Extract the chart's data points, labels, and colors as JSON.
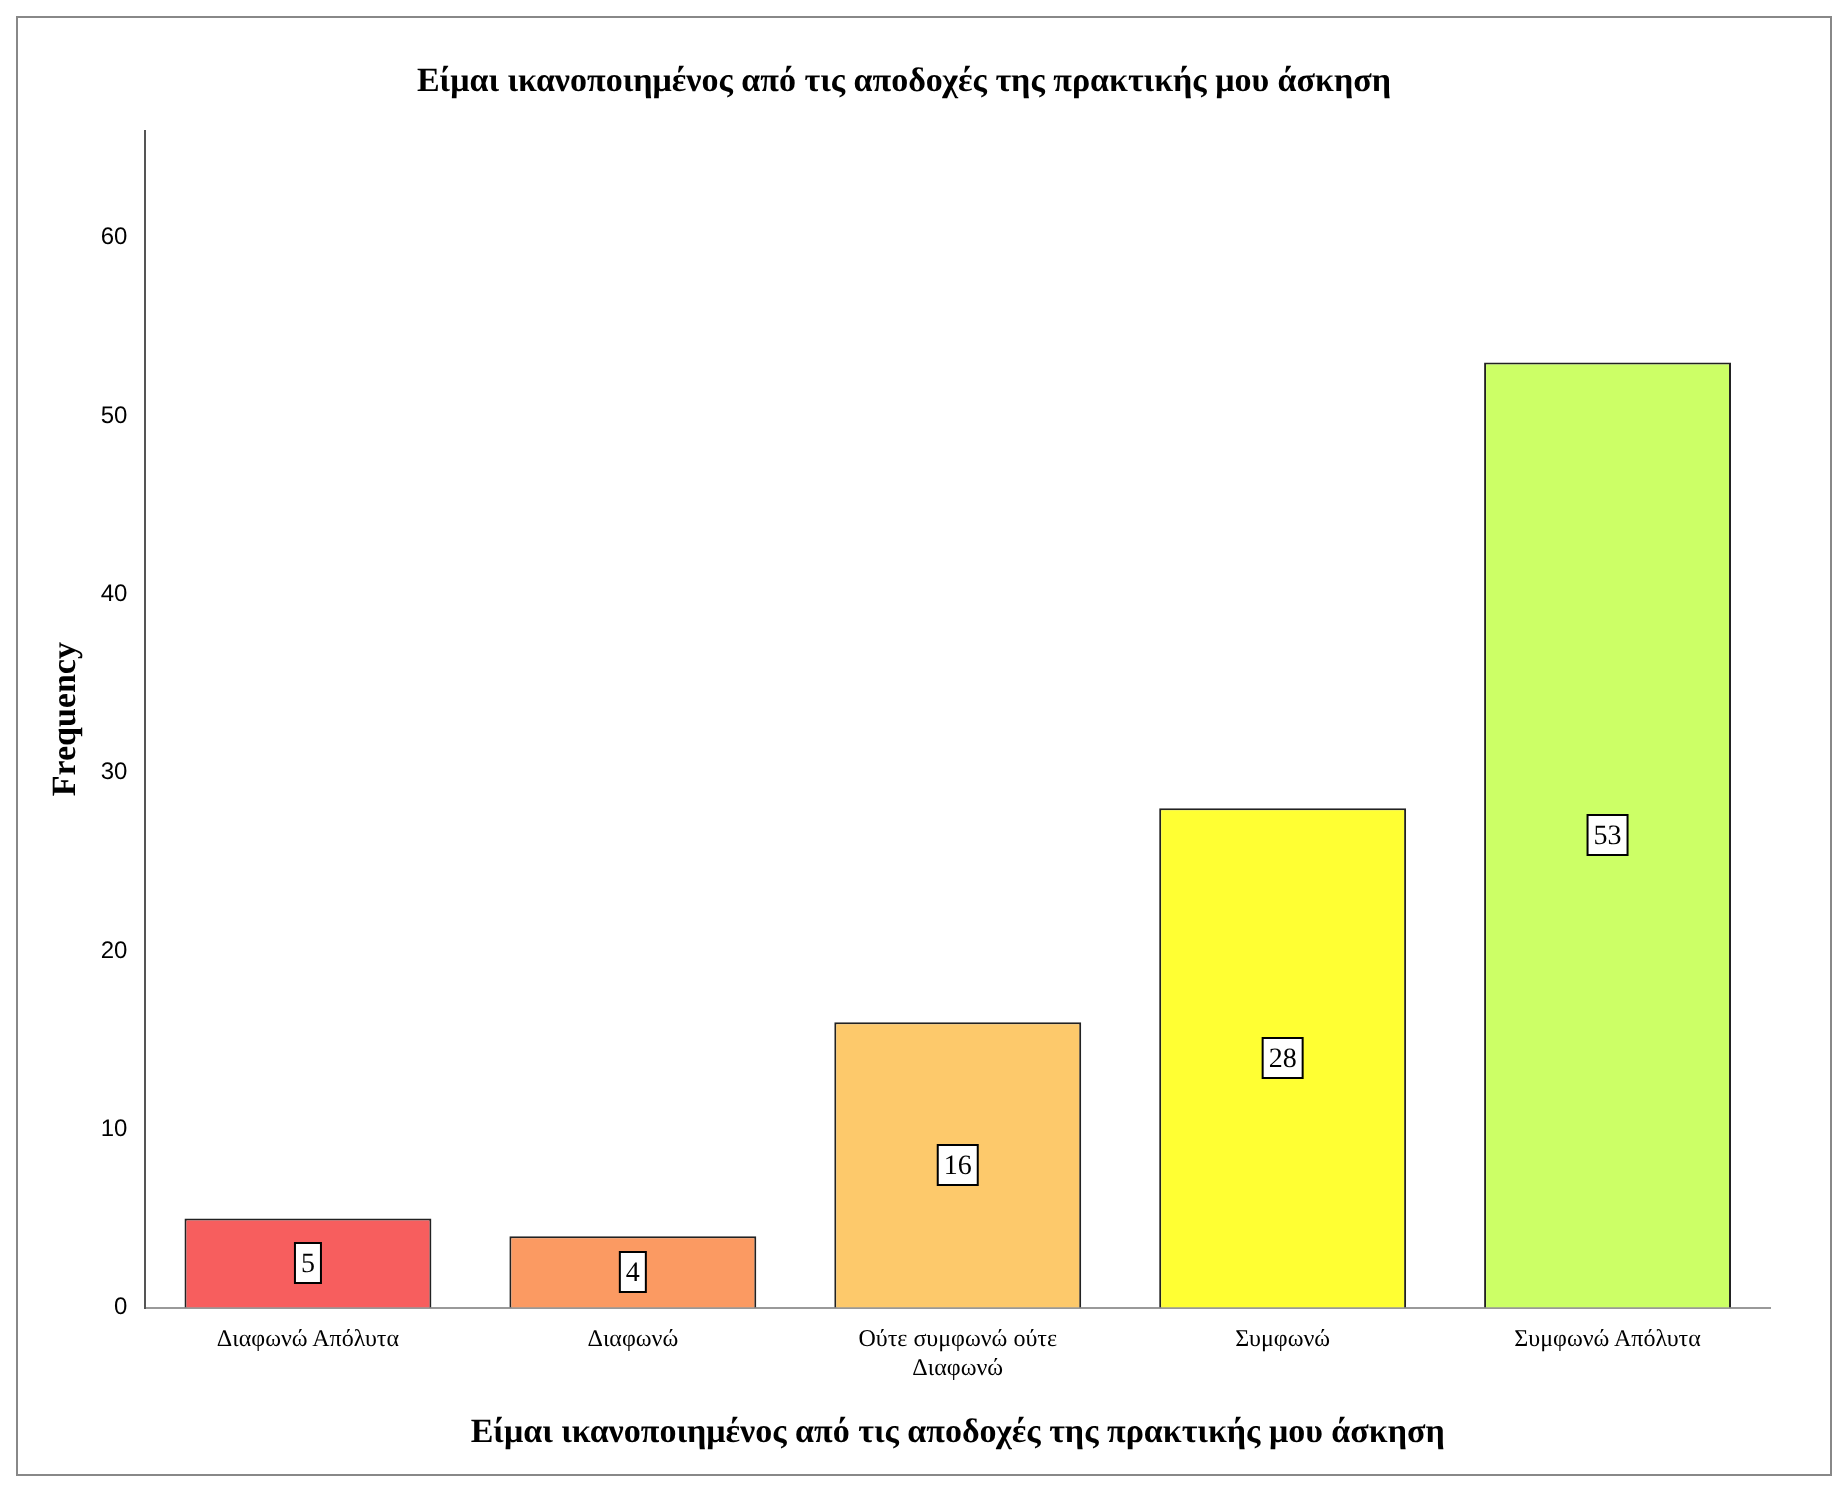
{
  "chart_data": {
    "type": "bar",
    "title": "Είμαι ικανοποιημένος από τις αποδοχές της πρακτικής μου άσκηση",
    "xlabel": "Είμαι ικανοποιημένος από τις αποδοχές της πρακτικής μου άσκηση",
    "ylabel": "Frequency",
    "categories": [
      "Διαφωνώ Απόλυτα",
      "Διαφωνώ",
      "Ούτε συμφωνώ ούτε Διαφωνώ",
      "Συμφωνώ",
      "Συμφωνώ Απόλυτα"
    ],
    "values": [
      5,
      4,
      16,
      28,
      53
    ],
    "colors": [
      "#f75e5e",
      "#fb9a62",
      "#fdc96b",
      "#ffff33",
      "#ccff66"
    ],
    "ylim": [
      0,
      66
    ],
    "yticks": [
      0,
      10,
      20,
      30,
      40,
      50,
      60
    ],
    "grid": false,
    "legend": false,
    "data_labels": true
  }
}
